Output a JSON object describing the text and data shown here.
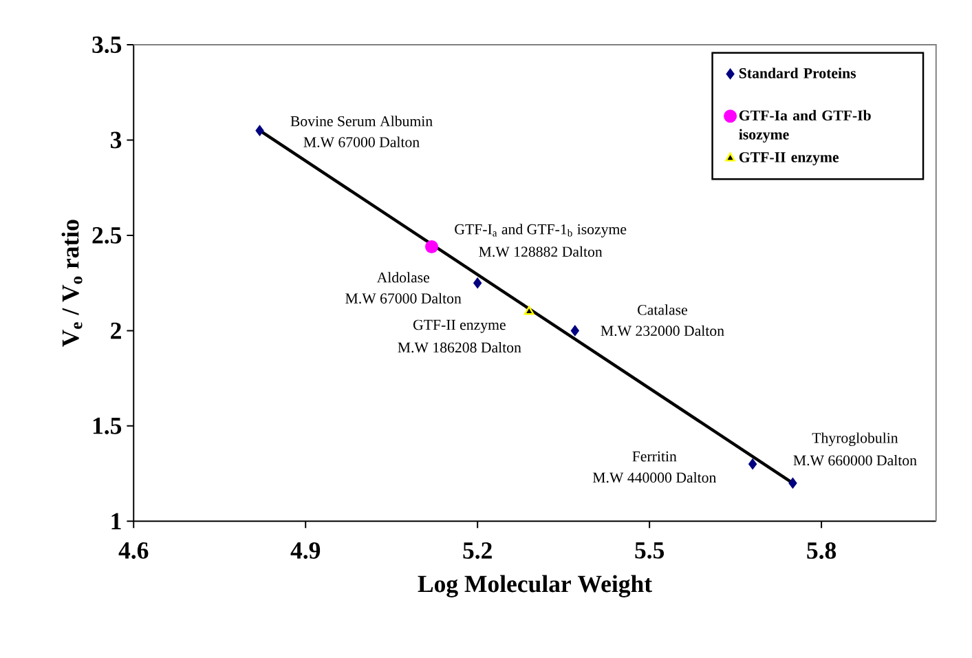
{
  "chart_data": {
    "type": "scatter",
    "xlabel": "Log Molecular Weight",
    "ylabel": "V$_{e}$ / V$_{o}$ ratio",
    "xlim": [
      4.6,
      6.0
    ],
    "ylim": [
      1,
      3.5
    ],
    "xticks": [
      4.6,
      4.9,
      5.2,
      5.5,
      5.8
    ],
    "yticks": [
      1,
      1.5,
      2,
      2.5,
      3,
      3.5
    ],
    "grid": false,
    "legend": "top right",
    "series": [
      {
        "name": "Standard Proteins",
        "color": "#000080",
        "marker": "diamond",
        "x": [
          4.82,
          5.2,
          5.37,
          5.68,
          5.75
        ],
        "values": [
          3.05,
          2.25,
          2.0,
          1.3,
          1.2
        ]
      },
      {
        "name": "GTF-Ia and GTF-Ib isozyme",
        "color": "#ff00ff",
        "marker": "circle",
        "x": [
          5.12
        ],
        "values": [
          2.44
        ]
      },
      {
        "name": "GTF-II enzyme",
        "color": "#ffff00",
        "marker": "triangle",
        "x": [
          5.29
        ],
        "values": [
          2.1
        ]
      },
      {
        "type": "line",
        "color": "#000000",
        "marker": "none",
        "x": [
          4.82,
          5.75
        ],
        "values": [
          3.05,
          1.2
        ]
      }
    ],
    "annotations": [
      "Bovine Serum Albumin",
      "M.W 67000 Dalton",
      "GTF-I$_{a}$ and GTF-1$_{b}$ isozyme",
      "M.W 128882 Dalton",
      "Aldolase",
      "M.W 67000 Dalton",
      "GTF-II enzyme",
      "M.W 186208 Dalton",
      "Catalase",
      "M.W 232000 Dalton",
      "Ferritin",
      "M.W 440000 Dalton",
      "Thyroglobulin",
      "M.W 660000 Dalton"
    ]
  }
}
